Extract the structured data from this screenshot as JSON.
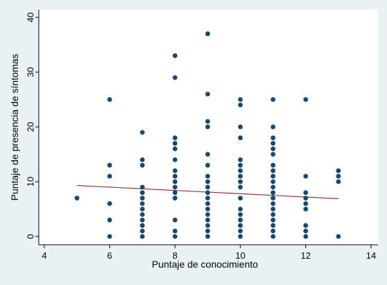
{
  "chart_data": {
    "type": "scatter",
    "title": "",
    "xlabel": "Puntaje de conocimiento",
    "ylabel": "Puntaje de presencia de síntomas",
    "xlim": [
      4,
      14
    ],
    "ylim": [
      0,
      40
    ],
    "xticks": [
      4,
      6,
      8,
      10,
      12,
      14
    ],
    "yticks": [
      0,
      10,
      20,
      30,
      40
    ],
    "grid": false,
    "legend": "none",
    "colors": {
      "background": "#eaf2f3",
      "plot_area": "#ffffff",
      "point": "#1a476f",
      "fit_line": "#90353b",
      "axis": "#000000"
    },
    "points": [
      {
        "x": 5,
        "y": 7
      },
      {
        "x": 6,
        "y": 25
      },
      {
        "x": 6,
        "y": 13
      },
      {
        "x": 6,
        "y": 11
      },
      {
        "x": 6,
        "y": 6
      },
      {
        "x": 6,
        "y": 3
      },
      {
        "x": 6,
        "y": 0
      },
      {
        "x": 7,
        "y": 19
      },
      {
        "x": 7,
        "y": 14
      },
      {
        "x": 7,
        "y": 13
      },
      {
        "x": 7,
        "y": 9
      },
      {
        "x": 7,
        "y": 8
      },
      {
        "x": 7,
        "y": 7
      },
      {
        "x": 7,
        "y": 6
      },
      {
        "x": 7,
        "y": 5
      },
      {
        "x": 7,
        "y": 4
      },
      {
        "x": 7,
        "y": 3
      },
      {
        "x": 7,
        "y": 2
      },
      {
        "x": 7,
        "y": 1
      },
      {
        "x": 7,
        "y": 0
      },
      {
        "x": 8,
        "y": 33
      },
      {
        "x": 8,
        "y": 29
      },
      {
        "x": 8,
        "y": 18
      },
      {
        "x": 8,
        "y": 17
      },
      {
        "x": 8,
        "y": 16
      },
      {
        "x": 8,
        "y": 14
      },
      {
        "x": 8,
        "y": 12
      },
      {
        "x": 8,
        "y": 11
      },
      {
        "x": 8,
        "y": 10
      },
      {
        "x": 8,
        "y": 9
      },
      {
        "x": 8,
        "y": 8
      },
      {
        "x": 8,
        "y": 7
      },
      {
        "x": 8,
        "y": 3
      },
      {
        "x": 8,
        "y": 1
      },
      {
        "x": 8,
        "y": 0
      },
      {
        "x": 9,
        "y": 37
      },
      {
        "x": 9,
        "y": 26
      },
      {
        "x": 9,
        "y": 21
      },
      {
        "x": 9,
        "y": 20
      },
      {
        "x": 9,
        "y": 15
      },
      {
        "x": 9,
        "y": 13
      },
      {
        "x": 9,
        "y": 11
      },
      {
        "x": 9,
        "y": 10
      },
      {
        "x": 9,
        "y": 9
      },
      {
        "x": 9,
        "y": 8
      },
      {
        "x": 9,
        "y": 7
      },
      {
        "x": 9,
        "y": 6
      },
      {
        "x": 9,
        "y": 5
      },
      {
        "x": 9,
        "y": 4
      },
      {
        "x": 9,
        "y": 3
      },
      {
        "x": 9,
        "y": 2
      },
      {
        "x": 9,
        "y": 1
      },
      {
        "x": 9,
        "y": 0
      },
      {
        "x": 10,
        "y": 25
      },
      {
        "x": 10,
        "y": 24
      },
      {
        "x": 10,
        "y": 20
      },
      {
        "x": 10,
        "y": 18
      },
      {
        "x": 10,
        "y": 14
      },
      {
        "x": 10,
        "y": 13
      },
      {
        "x": 10,
        "y": 12
      },
      {
        "x": 10,
        "y": 11
      },
      {
        "x": 10,
        "y": 10
      },
      {
        "x": 10,
        "y": 9
      },
      {
        "x": 10,
        "y": 7
      },
      {
        "x": 10,
        "y": 5
      },
      {
        "x": 10,
        "y": 4
      },
      {
        "x": 10,
        "y": 3
      },
      {
        "x": 10,
        "y": 2
      },
      {
        "x": 10,
        "y": 1
      },
      {
        "x": 10,
        "y": 0
      },
      {
        "x": 11,
        "y": 25
      },
      {
        "x": 11,
        "y": 20
      },
      {
        "x": 11,
        "y": 18
      },
      {
        "x": 11,
        "y": 17
      },
      {
        "x": 11,
        "y": 16
      },
      {
        "x": 11,
        "y": 15
      },
      {
        "x": 11,
        "y": 13
      },
      {
        "x": 11,
        "y": 12
      },
      {
        "x": 11,
        "y": 11
      },
      {
        "x": 11,
        "y": 10
      },
      {
        "x": 11,
        "y": 9
      },
      {
        "x": 11,
        "y": 8
      },
      {
        "x": 11,
        "y": 7
      },
      {
        "x": 11,
        "y": 6
      },
      {
        "x": 11,
        "y": 5
      },
      {
        "x": 11,
        "y": 4
      },
      {
        "x": 11,
        "y": 3
      },
      {
        "x": 11,
        "y": 2
      },
      {
        "x": 11,
        "y": 1
      },
      {
        "x": 11,
        "y": 0
      },
      {
        "x": 12,
        "y": 25
      },
      {
        "x": 12,
        "y": 11
      },
      {
        "x": 12,
        "y": 8
      },
      {
        "x": 12,
        "y": 7
      },
      {
        "x": 12,
        "y": 6
      },
      {
        "x": 12,
        "y": 5
      },
      {
        "x": 12,
        "y": 2
      },
      {
        "x": 12,
        "y": 1
      },
      {
        "x": 12,
        "y": 0
      },
      {
        "x": 13,
        "y": 12
      },
      {
        "x": 13,
        "y": 11
      },
      {
        "x": 13,
        "y": 10
      },
      {
        "x": 13,
        "y": 0
      }
    ],
    "fit_line": {
      "x": [
        5,
        13
      ],
      "y": [
        9.3,
        6.9
      ]
    }
  }
}
